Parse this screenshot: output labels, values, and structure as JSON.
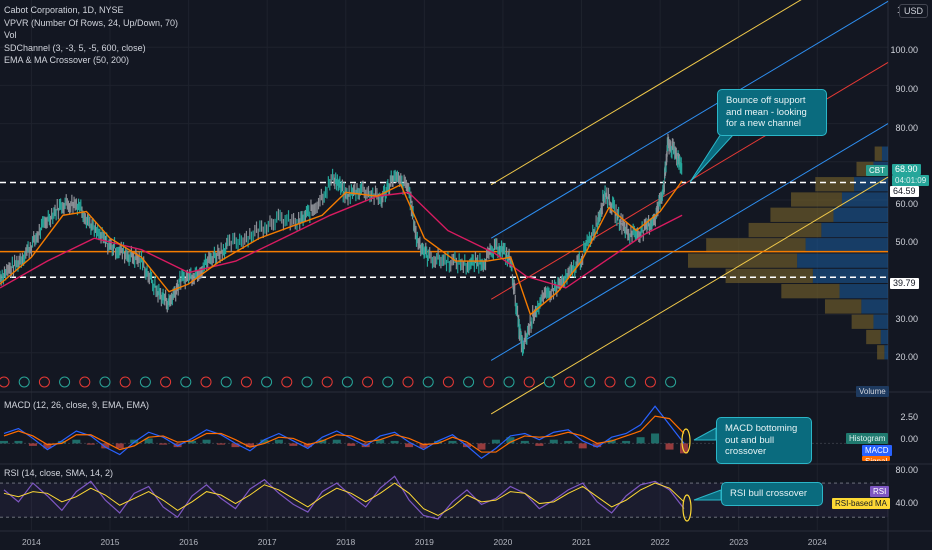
{
  "chart_data": {
    "type": "line",
    "title": "Cabot Corporation, 1D, NYSE",
    "symbol": "CBT",
    "currency": "USD",
    "x_range": [
      2013.6,
      2024.9
    ],
    "ylim": [
      18,
      115
    ],
    "last_price": "68.90",
    "countdown": "04:01:09",
    "levels": [
      {
        "value": 64.59,
        "label": "64.59",
        "style": "dashed",
        "color": "#ffffff"
      },
      {
        "value": 39.79,
        "label": "39.79",
        "style": "dashed",
        "color": "#ffffff"
      },
      {
        "value": 46.5,
        "label": "",
        "style": "solid",
        "color": "#f57c00"
      }
    ],
    "close_series": [
      {
        "x": 2013.6,
        "y": 40
      },
      {
        "x": 2013.8,
        "y": 43
      },
      {
        "x": 2014.0,
        "y": 48
      },
      {
        "x": 2014.2,
        "y": 55
      },
      {
        "x": 2014.4,
        "y": 59
      },
      {
        "x": 2014.6,
        "y": 59
      },
      {
        "x": 2014.8,
        "y": 52
      },
      {
        "x": 2015.0,
        "y": 48
      },
      {
        "x": 2015.2,
        "y": 46
      },
      {
        "x": 2015.4,
        "y": 44
      },
      {
        "x": 2015.6,
        "y": 36
      },
      {
        "x": 2015.75,
        "y": 33
      },
      {
        "x": 2015.9,
        "y": 39
      },
      {
        "x": 2016.1,
        "y": 41
      },
      {
        "x": 2016.3,
        "y": 45
      },
      {
        "x": 2016.5,
        "y": 48
      },
      {
        "x": 2016.8,
        "y": 51
      },
      {
        "x": 2017.1,
        "y": 55
      },
      {
        "x": 2017.4,
        "y": 54
      },
      {
        "x": 2017.6,
        "y": 58
      },
      {
        "x": 2017.85,
        "y": 66
      },
      {
        "x": 2018.0,
        "y": 61
      },
      {
        "x": 2018.2,
        "y": 63
      },
      {
        "x": 2018.45,
        "y": 60
      },
      {
        "x": 2018.6,
        "y": 66
      },
      {
        "x": 2018.8,
        "y": 63
      },
      {
        "x": 2018.9,
        "y": 50
      },
      {
        "x": 2019.05,
        "y": 45
      },
      {
        "x": 2019.3,
        "y": 44
      },
      {
        "x": 2019.55,
        "y": 43
      },
      {
        "x": 2019.75,
        "y": 44
      },
      {
        "x": 2019.95,
        "y": 48
      },
      {
        "x": 2020.1,
        "y": 44
      },
      {
        "x": 2020.2,
        "y": 27
      },
      {
        "x": 2020.25,
        "y": 21
      },
      {
        "x": 2020.4,
        "y": 31
      },
      {
        "x": 2020.6,
        "y": 36
      },
      {
        "x": 2020.8,
        "y": 39
      },
      {
        "x": 2021.0,
        "y": 45
      },
      {
        "x": 2021.2,
        "y": 54
      },
      {
        "x": 2021.3,
        "y": 62
      },
      {
        "x": 2021.45,
        "y": 56
      },
      {
        "x": 2021.6,
        "y": 51
      },
      {
        "x": 2021.8,
        "y": 52
      },
      {
        "x": 2021.95,
        "y": 56
      },
      {
        "x": 2022.05,
        "y": 64
      },
      {
        "x": 2022.1,
        "y": 75
      },
      {
        "x": 2022.2,
        "y": 72
      },
      {
        "x": 2022.28,
        "y": 68.9
      }
    ],
    "ema50_series": [
      {
        "x": 2013.6,
        "y": 38
      },
      {
        "x": 2014.0,
        "y": 45
      },
      {
        "x": 2014.4,
        "y": 56
      },
      {
        "x": 2014.7,
        "y": 57
      },
      {
        "x": 2015.0,
        "y": 50
      },
      {
        "x": 2015.4,
        "y": 45
      },
      {
        "x": 2015.75,
        "y": 36
      },
      {
        "x": 2016.0,
        "y": 38
      },
      {
        "x": 2016.4,
        "y": 44
      },
      {
        "x": 2016.9,
        "y": 50
      },
      {
        "x": 2017.3,
        "y": 53
      },
      {
        "x": 2017.7,
        "y": 56
      },
      {
        "x": 2018.0,
        "y": 62
      },
      {
        "x": 2018.4,
        "y": 61
      },
      {
        "x": 2018.7,
        "y": 64
      },
      {
        "x": 2019.0,
        "y": 50
      },
      {
        "x": 2019.4,
        "y": 44
      },
      {
        "x": 2019.8,
        "y": 44
      },
      {
        "x": 2020.1,
        "y": 45
      },
      {
        "x": 2020.35,
        "y": 30
      },
      {
        "x": 2020.7,
        "y": 36
      },
      {
        "x": 2021.0,
        "y": 44
      },
      {
        "x": 2021.35,
        "y": 58
      },
      {
        "x": 2021.7,
        "y": 52
      },
      {
        "x": 2022.0,
        "y": 57
      },
      {
        "x": 2022.28,
        "y": 65
      }
    ],
    "ma200_series": [
      {
        "x": 2013.6,
        "y": 37
      },
      {
        "x": 2014.2,
        "y": 44
      },
      {
        "x": 2014.8,
        "y": 50
      },
      {
        "x": 2015.4,
        "y": 47
      },
      {
        "x": 2016.0,
        "y": 41
      },
      {
        "x": 2016.6,
        "y": 44
      },
      {
        "x": 2017.2,
        "y": 50
      },
      {
        "x": 2017.8,
        "y": 56
      },
      {
        "x": 2018.4,
        "y": 61
      },
      {
        "x": 2018.8,
        "y": 62
      },
      {
        "x": 2019.3,
        "y": 52
      },
      {
        "x": 2019.9,
        "y": 46
      },
      {
        "x": 2020.3,
        "y": 40
      },
      {
        "x": 2020.8,
        "y": 37
      },
      {
        "x": 2021.3,
        "y": 44
      },
      {
        "x": 2021.8,
        "y": 51
      },
      {
        "x": 2022.28,
        "y": 56
      }
    ],
    "channel": {
      "start": {
        "x": 2019.85,
        "y": 34
      },
      "end": {
        "x": 2024.9,
        "y": 96
      },
      "offsets": [
        {
          "value": 30,
          "color": "#f0c94a"
        },
        {
          "value": 16,
          "color": "#2e8ef0"
        },
        {
          "value": 0,
          "color": "#e53935"
        },
        {
          "value": -16,
          "color": "#2e8ef0"
        },
        {
          "value": -30,
          "color": "#f0c94a"
        }
      ]
    },
    "volume_profile_bins": [
      {
        "lo": 18,
        "hi": 22,
        "up": 0.3,
        "down": 0.6
      },
      {
        "lo": 22,
        "hi": 26,
        "up": 0.6,
        "down": 1.2
      },
      {
        "lo": 26,
        "hi": 30,
        "up": 1.2,
        "down": 1.8
      },
      {
        "lo": 30,
        "hi": 34,
        "up": 2.2,
        "down": 3.0
      },
      {
        "lo": 34,
        "hi": 38,
        "up": 4.0,
        "down": 4.8
      },
      {
        "lo": 38,
        "hi": 42,
        "up": 6.2,
        "down": 7.2
      },
      {
        "lo": 42,
        "hi": 46,
        "up": 7.5,
        "down": 9.0
      },
      {
        "lo": 46,
        "hi": 50,
        "up": 6.8,
        "down": 8.2
      },
      {
        "lo": 50,
        "hi": 54,
        "up": 5.5,
        "down": 6.0
      },
      {
        "lo": 54,
        "hi": 58,
        "up": 4.5,
        "down": 5.2
      },
      {
        "lo": 58,
        "hi": 62,
        "up": 3.8,
        "down": 4.2
      },
      {
        "lo": 62,
        "hi": 66,
        "up": 2.8,
        "down": 3.2
      },
      {
        "lo": 66,
        "hi": 70,
        "up": 1.2,
        "down": 1.4
      },
      {
        "lo": 70,
        "hi": 74,
        "up": 0.5,
        "down": 0.6
      }
    ],
    "macd": {
      "ylim": [
        -1.5,
        3.5
      ],
      "line": [
        0.8,
        1.2,
        0.4,
        -0.5,
        0.2,
        1.0,
        0.6,
        -0.3,
        -0.9,
        0.1,
        0.9,
        0.5,
        -0.2,
        0.4,
        1.1,
        0.7,
        0.0,
        -0.6,
        0.3,
        0.8,
        0.2,
        -0.4,
        0.5,
        1.0,
        0.4,
        -0.2,
        0.6,
        0.9,
        0.1,
        -0.5,
        0.2,
        0.7,
        -0.2,
        -1.2,
        -0.4,
        0.6,
        0.8,
        0.3,
        0.9,
        1.1,
        0.2,
        -0.3,
        0.5,
        0.8,
        1.5,
        3.0,
        1.5,
        0.0
      ],
      "signal": [
        0.6,
        1.0,
        0.6,
        -0.1,
        0.0,
        0.7,
        0.7,
        0.1,
        -0.5,
        -0.2,
        0.5,
        0.6,
        0.1,
        0.2,
        0.8,
        0.8,
        0.3,
        -0.3,
        0.0,
        0.5,
        0.4,
        -0.1,
        0.2,
        0.7,
        0.6,
        0.1,
        0.3,
        0.7,
        0.4,
        -0.1,
        0.0,
        0.5,
        0.1,
        -0.7,
        -0.7,
        0.1,
        0.6,
        0.5,
        0.6,
        0.9,
        0.6,
        0.0,
        0.2,
        0.6,
        1.0,
        2.2,
        2.0,
        0.8
      ]
    },
    "rsi": {
      "ylim": [
        15,
        90
      ],
      "bands": [
        70,
        30
      ],
      "values": [
        62,
        48,
        70,
        55,
        38,
        60,
        72,
        50,
        35,
        58,
        66,
        42,
        30,
        55,
        68,
        52,
        40,
        63,
        74,
        58,
        45,
        36,
        60,
        70,
        55,
        42,
        64,
        78,
        50,
        32,
        28,
        48,
        62,
        45,
        52,
        66,
        58,
        40,
        50,
        62,
        70,
        48,
        35,
        55,
        68,
        72,
        62,
        40
      ],
      "ma": [
        58,
        54,
        60,
        58,
        48,
        54,
        64,
        56,
        44,
        52,
        60,
        50,
        38,
        48,
        60,
        56,
        46,
        56,
        68,
        62,
        52,
        42,
        54,
        64,
        58,
        48,
        58,
        70,
        58,
        40,
        32,
        42,
        56,
        48,
        50,
        60,
        58,
        46,
        48,
        58,
        66,
        54,
        42,
        50,
        62,
        70,
        64,
        48
      ]
    },
    "earnings_marker_count": 34,
    "x_tick_labels": [
      "2014",
      "2015",
      "2016",
      "2017",
      "2018",
      "2019",
      "2020",
      "2021",
      "2022",
      "2023",
      "2024"
    ]
  },
  "header": {
    "title": "Cabot Corporation, 1D, NYSE",
    "indicators": [
      "VPVR (Number Of Rows, 24, Up/Down, 70)",
      "Vol",
      "SDChannel (3, -3, 5, -5, 600, close)",
      "EMA & MA Crossover (50, 200)"
    ]
  },
  "price_axis": {
    "currency_button": "USD",
    "labels": [
      "100.00",
      "90.00",
      "80.00",
      "60.00",
      "50.00",
      "30.00",
      "20.00"
    ],
    "top_label": "1",
    "level_tags": {
      "hi": "64.59",
      "lo": "39.79"
    },
    "symbol_tag": "CBT",
    "last_price": "68.90",
    "countdown": "04:01:09",
    "volume_tag": "Volume"
  },
  "macd_pane": {
    "legend": "MACD (12, 26, close, 9, EMA, EMA)",
    "axis_labels": [
      "2.50",
      "0.00"
    ],
    "tags": [
      "Histogram",
      "MACD",
      "Signal"
    ]
  },
  "rsi_pane": {
    "legend": "RSI (14, close, SMA, 14, 2)",
    "axis_labels": [
      "80.00",
      "40.00"
    ],
    "tags": [
      "RSI",
      "RSI-based MA"
    ]
  },
  "callouts": {
    "main": "Bounce off support and mean - looking for a new channel",
    "macd": "MACD bottoming out and bull crossover",
    "rsi": "RSI bull crossover"
  },
  "colors": {
    "background": "#131722",
    "price": "#5d606b",
    "ema": "#f57c00",
    "ma": "#d81b60",
    "macd_line": "#2962ff",
    "signal_line": "#ff6d00",
    "rsi_line": "#7e57c2",
    "rsi_ma": "#fdd835",
    "callout": "#0a6b7e",
    "vp_up": "#1b5c9e",
    "vp_down": "#6b5a2a"
  }
}
